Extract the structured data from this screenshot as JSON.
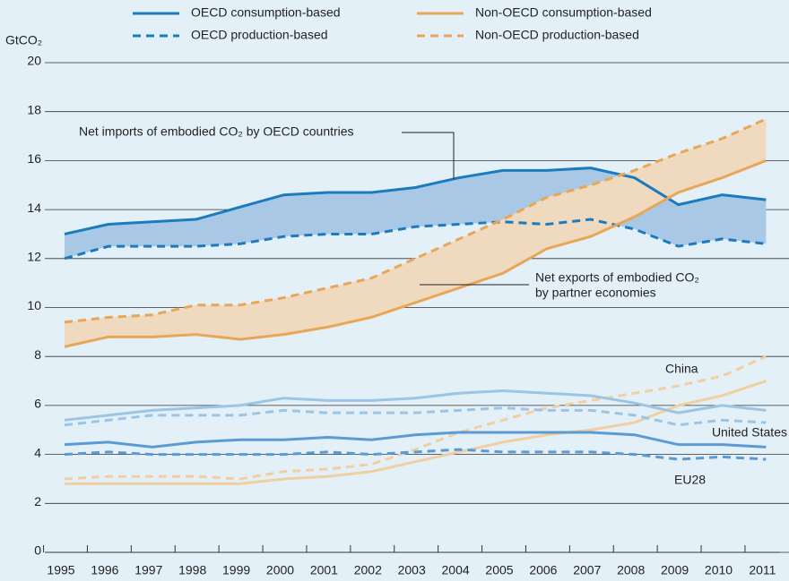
{
  "chart_data": {
    "type": "line",
    "y_axis_label": "GtCO₂",
    "categories": [
      "1995",
      "1996",
      "1997",
      "1998",
      "1999",
      "2000",
      "2001",
      "2002",
      "2003",
      "2004",
      "2005",
      "2006",
      "2007",
      "2008",
      "2009",
      "2010",
      "2011"
    ],
    "ylim": [
      0,
      20
    ],
    "yticks": [
      0,
      2,
      4,
      6,
      8,
      10,
      12,
      14,
      16,
      18,
      20
    ],
    "grid": true,
    "series": [
      {
        "name": "OECD consumption-based",
        "color": "#1a7bbf",
        "dashed": false,
        "values": [
          13.0,
          13.4,
          13.5,
          13.6,
          14.1,
          14.6,
          14.7,
          14.7,
          14.9,
          15.3,
          15.6,
          15.6,
          15.7,
          15.3,
          14.2,
          14.6,
          14.4
        ]
      },
      {
        "name": "OECD production-based",
        "color": "#1a7bbf",
        "dashed": true,
        "values": [
          12.0,
          12.5,
          12.5,
          12.5,
          12.6,
          12.9,
          13.0,
          13.0,
          13.3,
          13.4,
          13.5,
          13.4,
          13.6,
          13.2,
          12.5,
          12.8,
          12.6
        ]
      },
      {
        "name": "Non-OECD consumption-based",
        "color": "#e8a657",
        "dashed": false,
        "values": [
          8.4,
          8.8,
          8.8,
          8.9,
          8.7,
          8.9,
          9.2,
          9.6,
          10.2,
          10.8,
          11.4,
          12.4,
          12.9,
          13.7,
          14.7,
          15.3,
          16.0
        ]
      },
      {
        "name": "Non-OECD production-based",
        "color": "#e8a657",
        "dashed": true,
        "values": [
          9.4,
          9.6,
          9.7,
          10.1,
          10.1,
          10.4,
          10.8,
          11.2,
          12.0,
          12.8,
          13.6,
          14.5,
          15.0,
          15.6,
          16.3,
          16.9,
          17.7
        ]
      }
    ],
    "country_series": [
      {
        "label": "China",
        "color": "#f0cfa0",
        "consumption": [
          2.8,
          2.8,
          2.8,
          2.8,
          2.8,
          3.0,
          3.1,
          3.3,
          3.7,
          4.1,
          4.5,
          4.8,
          5.0,
          5.3,
          6.0,
          6.4,
          7.0
        ],
        "production": [
          3.0,
          3.1,
          3.1,
          3.1,
          3.0,
          3.3,
          3.4,
          3.6,
          4.2,
          4.9,
          5.4,
          5.9,
          6.2,
          6.5,
          6.8,
          7.2,
          8.0
        ]
      },
      {
        "label": "United States",
        "color": "#9cc4e4",
        "consumption": [
          5.4,
          5.6,
          5.8,
          5.9,
          6.0,
          6.3,
          6.2,
          6.2,
          6.3,
          6.5,
          6.6,
          6.5,
          6.4,
          6.1,
          5.7,
          6.0,
          5.8
        ],
        "production": [
          5.2,
          5.4,
          5.6,
          5.6,
          5.6,
          5.8,
          5.7,
          5.7,
          5.7,
          5.8,
          5.9,
          5.8,
          5.8,
          5.6,
          5.2,
          5.4,
          5.3
        ]
      },
      {
        "label": "EU28",
        "color": "#5b9bd5",
        "consumption": [
          4.4,
          4.5,
          4.3,
          4.5,
          4.6,
          4.6,
          4.7,
          4.6,
          4.8,
          4.9,
          4.9,
          4.9,
          4.9,
          4.8,
          4.4,
          4.4,
          4.3
        ],
        "production": [
          4.0,
          4.1,
          4.0,
          4.0,
          4.0,
          4.0,
          4.1,
          4.0,
          4.1,
          4.2,
          4.1,
          4.1,
          4.1,
          4.0,
          3.8,
          3.9,
          3.8
        ]
      }
    ],
    "annotations": {
      "net_imports": "Net imports of embodied CO₂ by OECD countries",
      "net_exports": [
        "Net exports of embodied CO₂",
        "by partner economies"
      ]
    }
  }
}
